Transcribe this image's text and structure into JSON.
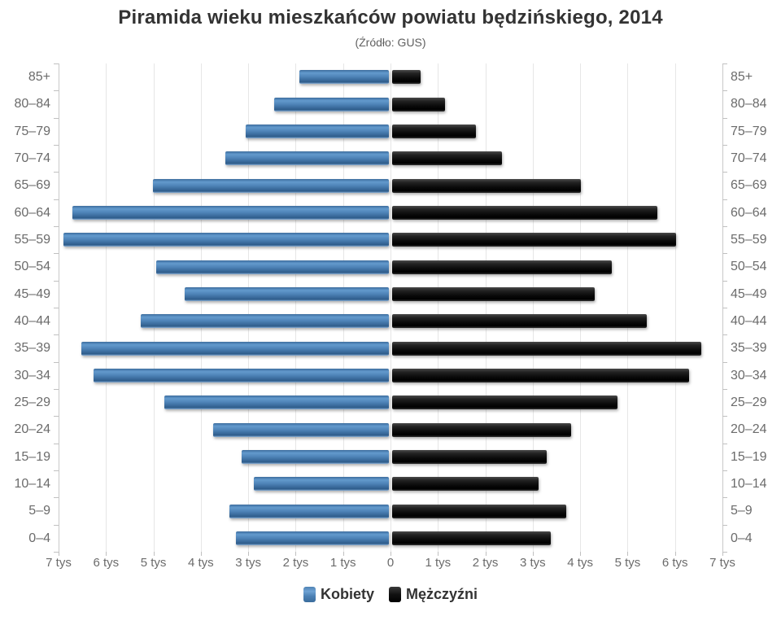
{
  "chart": {
    "title": "Piramida wieku mieszkańców powiatu będzińskiego, 2014",
    "subtitle": "(Źródło: GUS)"
  },
  "legend": {
    "items": [
      {
        "label": "Kobiety",
        "color": "#4572A7"
      },
      {
        "label": "Mężczyźni",
        "color": "#111111"
      }
    ]
  },
  "chart_data": {
    "type": "bar",
    "variant": "population-pyramid",
    "title": "Piramida wieku mieszkańców powiatu będzińskiego, 2014",
    "subtitle": "(Źródło: GUS)",
    "unit": "tys",
    "categories": [
      "85+",
      "80–84",
      "75–79",
      "70–74",
      "65–69",
      "60–64",
      "55–59",
      "50–54",
      "45–49",
      "40–44",
      "35–39",
      "30–34",
      "25–29",
      "20–24",
      "15–19",
      "10–14",
      "5–9",
      "0–4"
    ],
    "series": [
      {
        "name": "Kobiety",
        "side": "left",
        "color": "#4572A7",
        "values": [
          1.92,
          2.45,
          3.05,
          3.48,
          5.01,
          6.7,
          6.9,
          4.94,
          4.34,
          5.27,
          6.52,
          6.26,
          4.77,
          3.74,
          3.14,
          2.88,
          3.4,
          3.26
        ]
      },
      {
        "name": "Mężczyźni",
        "side": "right",
        "color": "#111111",
        "values": [
          0.63,
          1.15,
          1.8,
          2.35,
          4.02,
          5.62,
          6.03,
          4.66,
          4.31,
          5.4,
          6.56,
          6.3,
          4.78,
          3.81,
          3.3,
          3.12,
          3.7,
          3.38
        ]
      }
    ],
    "x_axis": {
      "min": 0,
      "max": 7,
      "tick_interval": 1,
      "tick_labels": [
        "7 tys",
        "6 tys",
        "5 tys",
        "4 tys",
        "3 tys",
        "2 tys",
        "1 tys",
        "0",
        "1 tys",
        "2 tys",
        "3 tys",
        "4 tys",
        "5 tys",
        "6 tys",
        "7 tys"
      ]
    },
    "grid": true,
    "legend_position": "bottom"
  }
}
